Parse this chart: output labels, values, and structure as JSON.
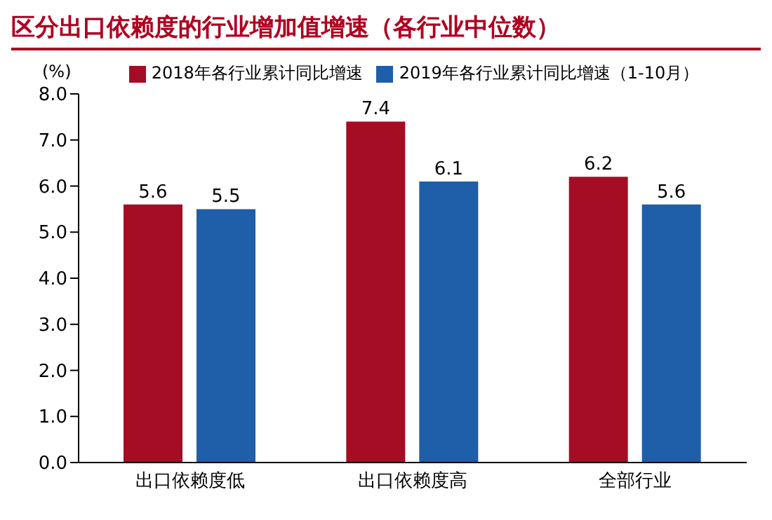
{
  "chart_data": {
    "type": "bar",
    "title": "区分出口依赖度的行业增加值增速（各行业中位数）",
    "ylabel": "(%)",
    "categories": [
      "出口依赖度低",
      "出口依赖度高",
      "全部行业"
    ],
    "series": [
      {
        "name": "2018年各行业累计同比增速",
        "color": "#a50d25",
        "values": [
          5.6,
          7.4,
          6.2
        ]
      },
      {
        "name": "2019年各行业累计同比增速（1-10月）",
        "color": "#1f5ea8",
        "values": [
          5.5,
          6.1,
          5.6
        ]
      }
    ],
    "ylim": [
      0,
      8
    ],
    "yticks": [
      {
        "value": 0,
        "label": "0.0"
      },
      {
        "value": 1,
        "label": "1.0"
      },
      {
        "value": 2,
        "label": "2.0"
      },
      {
        "value": 3,
        "label": "3.0"
      },
      {
        "value": 4,
        "label": "4.0"
      },
      {
        "value": 5,
        "label": "5.0"
      },
      {
        "value": 6,
        "label": "6.0"
      },
      {
        "value": 7,
        "label": "7.0"
      },
      {
        "value": 8,
        "label": "8.0"
      }
    ],
    "data_labels": true,
    "legend": "top",
    "grid": false
  }
}
